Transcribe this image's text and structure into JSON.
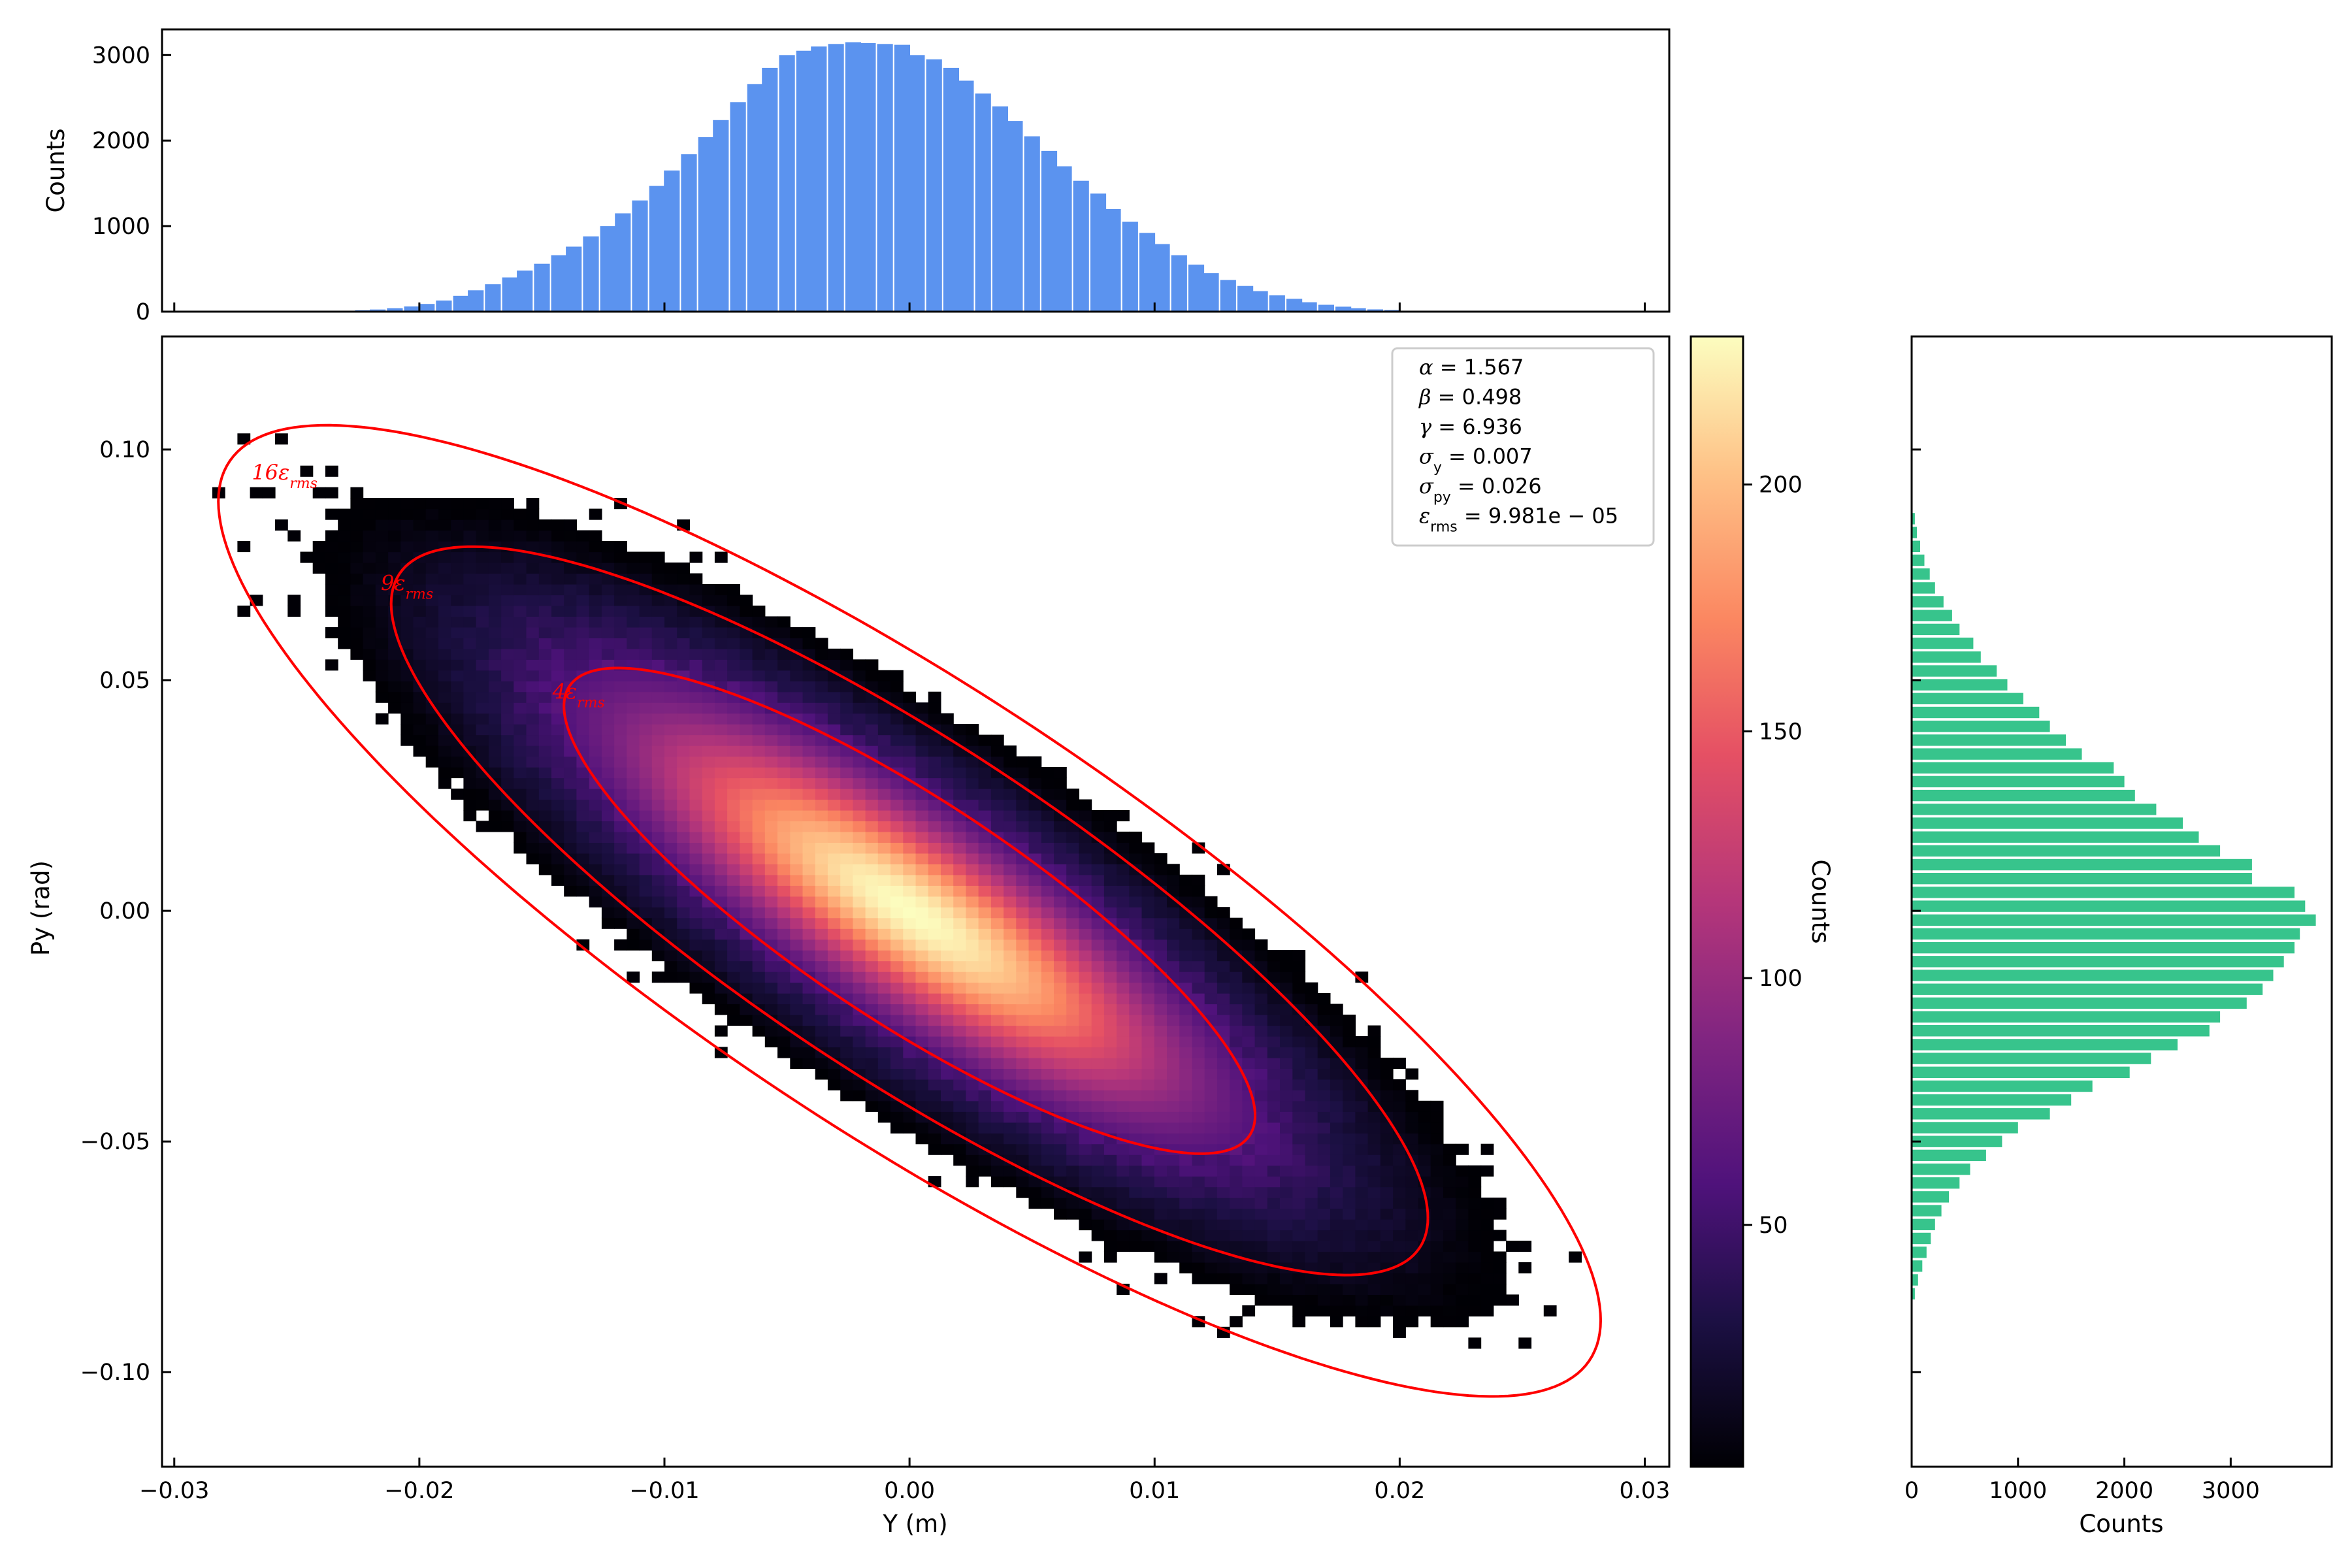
{
  "chart_data": [
    {
      "type": "heatmap",
      "panel": "phase-space",
      "xlabel": "Y (m)",
      "ylabel": "Py (rad)",
      "xlim": [
        -0.0305,
        0.031
      ],
      "ylim": [
        -0.1205,
        0.1245
      ],
      "xticks": [
        -0.03,
        -0.02,
        -0.01,
        0.0,
        0.01,
        0.02,
        0.03
      ],
      "xtick_labels": [
        "−0.03",
        "−0.02",
        "−0.01",
        "0.00",
        "0.01",
        "0.02",
        "0.03"
      ],
      "yticks": [
        0.1,
        0.05,
        0.0,
        -0.05,
        -0.1
      ],
      "ytick_labels": [
        "0.10",
        "0.05",
        "0.00",
        "−0.05",
        "−0.10"
      ],
      "colormap": "magma",
      "color_range": [
        1,
        230
      ],
      "twiss": {
        "alpha": 1.567,
        "beta": 0.498,
        "gamma": 6.936,
        "emittance_rms": 9.981e-05
      },
      "ellipses": [
        {
          "label": "16ε",
          "label_sub": "rms",
          "multiple": 16,
          "color": "#ff0000",
          "label_at": [
            -0.0255,
            0.0935
          ]
        },
        {
          "label": "9ε",
          "label_sub": "rms",
          "multiple": 9,
          "color": "#ff0000",
          "label_at": [
            -0.0205,
            0.0695
          ]
        },
        {
          "label": "4ε",
          "label_sub": "rms",
          "multiple": 4,
          "color": "#ff0000",
          "label_at": [
            -0.0135,
            0.046
          ]
        }
      ],
      "stats": [
        {
          "sym": "α",
          "sub": "",
          "text": " = 1.567"
        },
        {
          "sym": "β",
          "sub": "",
          "text": " = 0.498"
        },
        {
          "sym": "γ",
          "sub": "",
          "text": " = 6.936"
        },
        {
          "sym": "σ",
          "sub": "y",
          "text": " = 0.007"
        },
        {
          "sym": "σ",
          "sub": "py",
          "text": " = 0.026"
        },
        {
          "sym": "ε",
          "sub": "rms",
          "text": " = 9.981e − 05"
        }
      ],
      "legend_placement": "top-right",
      "grid": false
    },
    {
      "type": "bar",
      "panel": "top-histogram",
      "ylabel": "Counts",
      "ylim": [
        0,
        3300
      ],
      "yticks": [
        0,
        1000,
        2000,
        3000
      ],
      "ytick_labels": [
        "0",
        "1000",
        "2000",
        "3000"
      ],
      "color": "#5b93ef",
      "x": [
        -0.023,
        -0.0223,
        -0.0217,
        -0.021,
        -0.0203,
        -0.0197,
        -0.019,
        -0.0183,
        -0.0177,
        -0.017,
        -0.0163,
        -0.0157,
        -0.015,
        -0.0143,
        -0.0137,
        -0.013,
        -0.0123,
        -0.0117,
        -0.011,
        -0.0103,
        -0.0097,
        -0.009,
        -0.0083,
        -0.0077,
        -0.007,
        -0.0063,
        -0.0057,
        -0.005,
        -0.0043,
        -0.0037,
        -0.003,
        -0.0023,
        -0.0017,
        -0.001,
        -0.0003,
        0.0003,
        0.001,
        0.0017,
        0.0023,
        0.003,
        0.0037,
        0.0043,
        0.005,
        0.0057,
        0.0063,
        0.007,
        0.0077,
        0.0083,
        0.009,
        0.0097,
        0.0103,
        0.011,
        0.0117,
        0.0123,
        0.013,
        0.0137,
        0.0143,
        0.015,
        0.0157,
        0.0163,
        0.017,
        0.0177,
        0.0183,
        0.019,
        0.0197,
        0.0203,
        0.021,
        0.0217,
        0.0223
      ],
      "values": [
        8,
        15,
        25,
        40,
        60,
        90,
        130,
        185,
        250,
        320,
        400,
        480,
        560,
        660,
        760,
        880,
        1000,
        1150,
        1300,
        1470,
        1650,
        1840,
        2040,
        2240,
        2450,
        2660,
        2850,
        3000,
        3050,
        3100,
        3130,
        3150,
        3140,
        3130,
        3120,
        3000,
        2950,
        2850,
        2700,
        2550,
        2400,
        2230,
        2050,
        1880,
        1700,
        1530,
        1380,
        1200,
        1050,
        920,
        790,
        660,
        550,
        450,
        370,
        300,
        240,
        190,
        150,
        110,
        80,
        58,
        40,
        27,
        18,
        11,
        7,
        4,
        2
      ]
    },
    {
      "type": "bar",
      "panel": "right-histogram",
      "orientation": "horizontal",
      "xlabel": "Counts",
      "xlim": [
        0,
        3950
      ],
      "xticks": [
        0,
        1000,
        2000,
        3000
      ],
      "xtick_labels": [
        "0",
        "1000",
        "2000",
        "3000"
      ],
      "color": "#37c48c",
      "y": [
        0.085,
        0.082,
        0.079,
        0.076,
        0.073,
        0.07,
        0.067,
        0.064,
        0.061,
        0.058,
        0.055,
        0.052,
        0.049,
        0.046,
        0.043,
        0.04,
        0.037,
        0.034,
        0.031,
        0.028,
        0.025,
        0.022,
        0.019,
        0.016,
        0.013,
        0.01,
        0.007,
        0.004,
        0.001,
        -0.002,
        -0.005,
        -0.008,
        -0.011,
        -0.014,
        -0.017,
        -0.02,
        -0.023,
        -0.026,
        -0.029,
        -0.032,
        -0.035,
        -0.038,
        -0.041,
        -0.044,
        -0.047,
        -0.05,
        -0.053,
        -0.056,
        -0.059,
        -0.062,
        -0.065,
        -0.068,
        -0.071,
        -0.074,
        -0.077,
        -0.08,
        -0.083
      ],
      "values": [
        30,
        50,
        80,
        120,
        170,
        220,
        300,
        380,
        450,
        580,
        650,
        800,
        900,
        1050,
        1200,
        1300,
        1450,
        1600,
        1900,
        2000,
        2100,
        2300,
        2550,
        2700,
        2900,
        3200,
        3200,
        3600,
        3700,
        3800,
        3650,
        3600,
        3500,
        3400,
        3300,
        3150,
        2900,
        2800,
        2500,
        2250,
        2050,
        1700,
        1500,
        1300,
        1000,
        850,
        700,
        550,
        450,
        350,
        280,
        220,
        180,
        140,
        100,
        60,
        30
      ]
    },
    {
      "type": "heatmap",
      "panel": "colorbar",
      "ylabel": "Counts",
      "colormap": "magma",
      "range": [
        1,
        230
      ],
      "ticks": [
        50,
        100,
        150,
        200
      ],
      "tick_labels": [
        "50",
        "100",
        "150",
        "200"
      ]
    }
  ]
}
